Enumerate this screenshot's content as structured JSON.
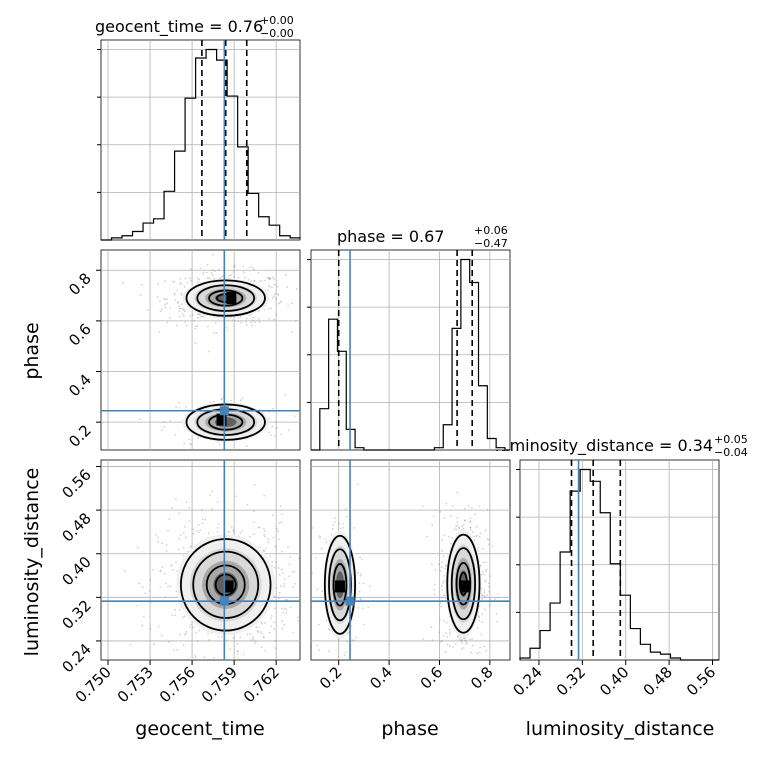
{
  "chart_data": {
    "type": "corner",
    "parameters": [
      "geocent_time",
      "phase",
      "luminosity_distance"
    ],
    "truths": {
      "geocent_time": 0.7583,
      "phase": 0.245,
      "luminosity_distance": 0.313
    },
    "colors": {
      "truth": "#4682b4",
      "hist": "#000000",
      "grid": "#b0b0b0",
      "samples": "#808080"
    },
    "axes": {
      "geocent_time": {
        "range": [
          0.7495,
          0.7637
        ],
        "ticks": [
          0.75,
          0.753,
          0.756,
          0.759,
          0.762
        ],
        "tick_labels": [
          "0.750",
          "0.753",
          "0.756",
          "0.759",
          "0.762"
        ]
      },
      "phase": {
        "range": [
          0.09,
          0.88
        ],
        "ticks": [
          0.2,
          0.4,
          0.6,
          0.8
        ],
        "tick_labels": [
          "0.2",
          "0.4",
          "0.6",
          "0.8"
        ]
      },
      "luminosity_distance": {
        "range": [
          0.205,
          0.572
        ],
        "ticks": [
          0.24,
          0.32,
          0.4,
          0.48,
          0.56
        ],
        "tick_labels": [
          "0.24",
          "0.32",
          "0.40",
          "0.48",
          "0.56"
        ]
      }
    },
    "titles": [
      {
        "name": "geocent_time",
        "text": "geocent_time = 0.76",
        "sup": "+0.00",
        "sub": "−0.00"
      },
      {
        "name": "phase",
        "text": "phase = 0.67",
        "sup": "+0.06",
        "sub": "−0.47"
      },
      {
        "name": "luminosity_distance",
        "text": "luminosity_distance = 0.34",
        "sup": "+0.05",
        "sub": "−0.04"
      }
    ],
    "diagonals": [
      {
        "param": "geocent_time",
        "bin_edges": [
          0.7495,
          0.75025,
          0.751,
          0.75175,
          0.7525,
          0.75325,
          0.754,
          0.75475,
          0.7555,
          0.75625,
          0.757,
          0.75775,
          0.7585,
          0.75925,
          0.76,
          0.76075,
          0.7615,
          0.76225,
          0.763,
          0.76375
        ],
        "counts": [
          0,
          1,
          2,
          4,
          8,
          10,
          23,
          42,
          67,
          86,
          90,
          85,
          68,
          44,
          22,
          11,
          7,
          2,
          1
        ],
        "quantiles": [
          0.7567,
          0.7584,
          0.7599
        ]
      },
      {
        "param": "phase",
        "bin_edges": [
          0.09,
          0.125,
          0.16,
          0.195,
          0.23,
          0.265,
          0.3,
          0.335,
          0.37,
          0.405,
          0.44,
          0.475,
          0.51,
          0.545,
          0.58,
          0.615,
          0.65,
          0.685,
          0.72,
          0.755,
          0.79,
          0.825,
          0.86,
          0.88
        ],
        "counts": [
          0,
          18,
          57,
          43,
          9,
          1,
          0,
          0,
          0,
          0,
          0,
          0,
          0,
          0,
          1,
          11,
          53,
          83,
          73,
          28,
          5,
          1,
          0
        ],
        "quantiles": [
          0.2,
          0.67,
          0.73
        ]
      },
      {
        "param": "luminosity_distance",
        "bin_edges": [
          0.205,
          0.2235,
          0.242,
          0.2605,
          0.279,
          0.2975,
          0.316,
          0.3345,
          0.353,
          0.3715,
          0.39,
          0.4085,
          0.427,
          0.4455,
          0.464,
          0.4825,
          0.501,
          0.5195,
          0.538,
          0.5565,
          0.572
        ],
        "counts": [
          1,
          6,
          15,
          29,
          55,
          86,
          97,
          91,
          75,
          49,
          33,
          16,
          8,
          4,
          3,
          1,
          0,
          0,
          0,
          0
        ],
        "quantiles": [
          0.3,
          0.34,
          0.39
        ]
      }
    ],
    "pairs": [
      {
        "x": "geocent_time",
        "y": "phase",
        "modes": [
          {
            "cx": 0.7584,
            "cy": 0.69,
            "sx": 0.0014,
            "sy": 0.035,
            "weight": 0.78,
            "peak_x": 0.7588,
            "peak_y": 0.69
          },
          {
            "cx": 0.7584,
            "cy": 0.2,
            "sx": 0.0014,
            "sy": 0.035,
            "weight": 0.22,
            "peak_x": 0.7581,
            "peak_y": 0.21
          }
        ]
      },
      {
        "x": "geocent_time",
        "y": "luminosity_distance",
        "modes": [
          {
            "cx": 0.7584,
            "cy": 0.343,
            "sx": 0.0016,
            "sy": 0.042,
            "weight": 1.0,
            "peak_x": 0.7586,
            "peak_y": 0.34
          }
        ]
      },
      {
        "x": "phase",
        "y": "luminosity_distance",
        "modes": [
          {
            "cx": 0.695,
            "cy": 0.345,
            "sx": 0.032,
            "sy": 0.045,
            "weight": 0.78,
            "peak_x": 0.7,
            "peak_y": 0.34
          },
          {
            "cx": 0.205,
            "cy": 0.343,
            "sx": 0.03,
            "sy": 0.045,
            "weight": 0.22,
            "peak_x": 0.205,
            "peak_y": 0.34
          }
        ]
      }
    ]
  }
}
